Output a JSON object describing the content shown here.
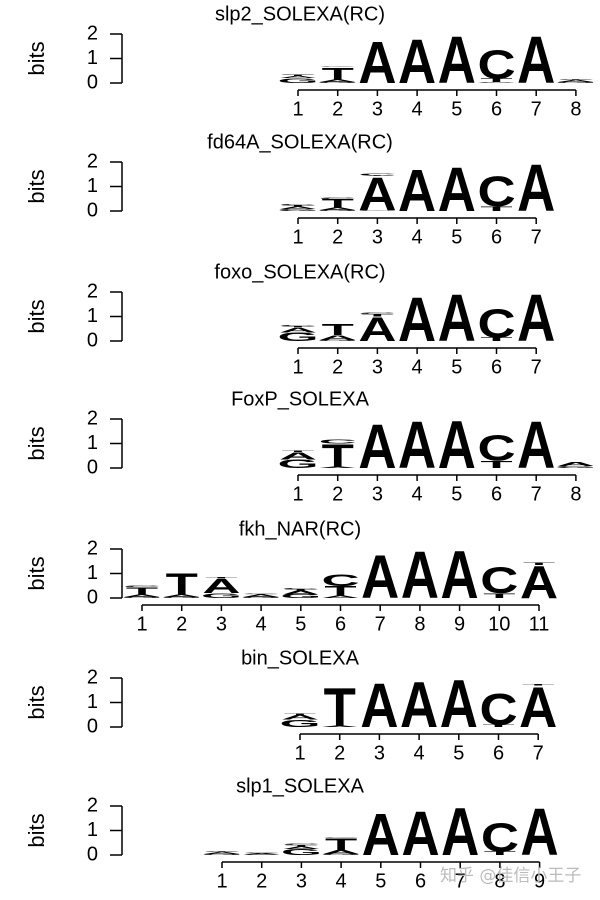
{
  "chart_data": [
    {
      "type": "logo",
      "title": "slp2_SOLEXA(RC)",
      "ylabel": "bits",
      "ylim": [
        0,
        2
      ],
      "yticks": [
        0,
        1,
        2
      ],
      "categories": [
        "1",
        "2",
        "3",
        "4",
        "5",
        "6",
        "7",
        "8"
      ],
      "series": [
        {
          "name": "G",
          "color": "#f0b000",
          "values": [
            0.2,
            0.05,
            0,
            0,
            0,
            0.02,
            0,
            0.04
          ]
        },
        {
          "name": "A",
          "color": "#109010",
          "values": [
            0.08,
            0.1,
            1.75,
            1.85,
            1.95,
            0.02,
            1.95,
            0.08
          ]
        },
        {
          "name": "T",
          "color": "#d00000",
          "values": [
            0.05,
            0.5,
            0,
            0,
            0,
            0.15,
            0,
            0.02
          ]
        },
        {
          "name": "C",
          "color": "#2020c0",
          "values": [
            0.03,
            0.03,
            0,
            0,
            0,
            1.2,
            0,
            0.02
          ]
        }
      ]
    },
    {
      "type": "logo",
      "title": "fd64A_SOLEXA(RC)",
      "ylabel": "bits",
      "ylim": [
        0,
        2
      ],
      "yticks": [
        0,
        1,
        2
      ],
      "categories": [
        "1",
        "2",
        "3",
        "4",
        "5",
        "6",
        "7"
      ],
      "series": [
        {
          "name": "G",
          "color": "#f0b000",
          "values": [
            0.08,
            0.05,
            0.03,
            0,
            0,
            0,
            0
          ]
        },
        {
          "name": "A",
          "color": "#109010",
          "values": [
            0.1,
            0.1,
            1.4,
            1.75,
            1.85,
            0,
            1.95
          ]
        },
        {
          "name": "T",
          "color": "#d00000",
          "values": [
            0.05,
            0.35,
            0.02,
            0,
            0,
            0.2,
            0
          ]
        },
        {
          "name": "C",
          "color": "#2020c0",
          "values": [
            0.05,
            0.05,
            0.08,
            0,
            0,
            1.25,
            0
          ]
        }
      ]
    },
    {
      "type": "logo",
      "title": "foxo_SOLEXA(RC)",
      "ylabel": "bits",
      "ylim": [
        0,
        2
      ],
      "yticks": [
        0,
        1,
        2
      ],
      "categories": [
        "1",
        "2",
        "3",
        "4",
        "5",
        "6",
        "7"
      ],
      "series": [
        {
          "name": "G",
          "color": "#f0b000",
          "values": [
            0.35,
            0.05,
            0,
            0,
            0,
            0,
            0
          ]
        },
        {
          "name": "A",
          "color": "#109010",
          "values": [
            0.2,
            0.2,
            1.0,
            1.85,
            1.95,
            0,
            1.95
          ]
        },
        {
          "name": "T",
          "color": "#d00000",
          "values": [
            0.05,
            0.45,
            0.1,
            0,
            0,
            0.15,
            0
          ]
        },
        {
          "name": "C",
          "color": "#2020c0",
          "values": [
            0.05,
            0,
            0.05,
            0,
            0,
            1.2,
            0
          ]
        }
      ]
    },
    {
      "type": "logo",
      "title": "FoxP_SOLEXA",
      "ylabel": "bits",
      "ylim": [
        0,
        2
      ],
      "yticks": [
        0,
        1,
        2
      ],
      "categories": [
        "1",
        "2",
        "3",
        "4",
        "5",
        "6",
        "7",
        "8"
      ],
      "series": [
        {
          "name": "G",
          "color": "#f0b000",
          "values": [
            0.35,
            0,
            0,
            0,
            0,
            0,
            0,
            0.08
          ]
        },
        {
          "name": "A",
          "color": "#109010",
          "values": [
            0.3,
            0.05,
            1.85,
            1.95,
            2.0,
            0,
            1.95,
            0.15
          ]
        },
        {
          "name": "T",
          "color": "#d00000",
          "values": [
            0.05,
            0.95,
            0,
            0,
            0,
            0.3,
            0,
            0
          ]
        },
        {
          "name": "C",
          "color": "#2020c0",
          "values": [
            0,
            0.15,
            0,
            0,
            0,
            1.05,
            0,
            0
          ]
        }
      ]
    },
    {
      "type": "logo",
      "title": "fkh_NAR(RC)",
      "ylabel": "bits",
      "ylim": [
        0,
        2
      ],
      "yticks": [
        0,
        1,
        2
      ],
      "categories": [
        "1",
        "2",
        "3",
        "4",
        "5",
        "6",
        "7",
        "8",
        "9",
        "10",
        "11"
      ],
      "series": [
        {
          "name": "G",
          "color": "#f0b000",
          "values": [
            0.05,
            0.05,
            0.2,
            0.05,
            0.15,
            0,
            0,
            0,
            0,
            0,
            0
          ]
        },
        {
          "name": "A",
          "color": "#109010",
          "values": [
            0.1,
            0.1,
            0.6,
            0.1,
            0.15,
            0.1,
            1.8,
            1.95,
            2.0,
            0,
            1.35
          ]
        },
        {
          "name": "T",
          "color": "#d00000",
          "values": [
            0.3,
            0.9,
            0.05,
            0.03,
            0.05,
            0.4,
            0,
            0,
            0,
            0.2,
            0.1
          ]
        },
        {
          "name": "C",
          "color": "#2020c0",
          "values": [
            0.05,
            0,
            0,
            0.03,
            0.05,
            0.5,
            0,
            0,
            0,
            1.1,
            0
          ]
        }
      ]
    },
    {
      "type": "logo",
      "title": "bin_SOLEXA",
      "ylabel": "bits",
      "ylim": [
        0,
        2
      ],
      "yticks": [
        0,
        1,
        2
      ],
      "categories": [
        "1",
        "2",
        "3",
        "4",
        "5",
        "6",
        "7"
      ],
      "series": [
        {
          "name": "G",
          "color": "#f0b000",
          "values": [
            0.3,
            0,
            0,
            0,
            0,
            0,
            0
          ]
        },
        {
          "name": "A",
          "color": "#109010",
          "values": [
            0.2,
            0.05,
            1.85,
            1.9,
            2.0,
            0,
            1.7
          ]
        },
        {
          "name": "T",
          "color": "#d00000",
          "values": [
            0.05,
            1.6,
            0,
            0,
            0,
            0.1,
            0.05
          ]
        },
        {
          "name": "C",
          "color": "#2020c0",
          "values": [
            0,
            0,
            0,
            0,
            0,
            1.3,
            0
          ]
        }
      ]
    },
    {
      "type": "logo",
      "title": "slp1_SOLEXA",
      "ylabel": "bits",
      "ylim": [
        0,
        2
      ],
      "yticks": [
        0,
        1,
        2
      ],
      "categories": [
        "1",
        "2",
        "3",
        "4",
        "5",
        "6",
        "7",
        "8",
        "9"
      ],
      "series": [
        {
          "name": "G",
          "color": "#f0b000",
          "values": [
            0.05,
            0.02,
            0.25,
            0.05,
            0,
            0,
            0,
            0,
            0
          ]
        },
        {
          "name": "A",
          "color": "#109010",
          "values": [
            0.08,
            0.05,
            0.1,
            0.15,
            1.75,
            1.85,
            2.0,
            0,
            1.95
          ]
        },
        {
          "name": "T",
          "color": "#d00000",
          "values": [
            0.02,
            0.03,
            0.05,
            0.5,
            0,
            0,
            0,
            0.15,
            0
          ]
        },
        {
          "name": "C",
          "color": "#2020c0",
          "values": [
            0.03,
            0.02,
            0.05,
            0.03,
            0,
            0,
            0,
            1.2,
            0
          ]
        }
      ]
    }
  ],
  "watermark": "知乎 @佳信小王子"
}
